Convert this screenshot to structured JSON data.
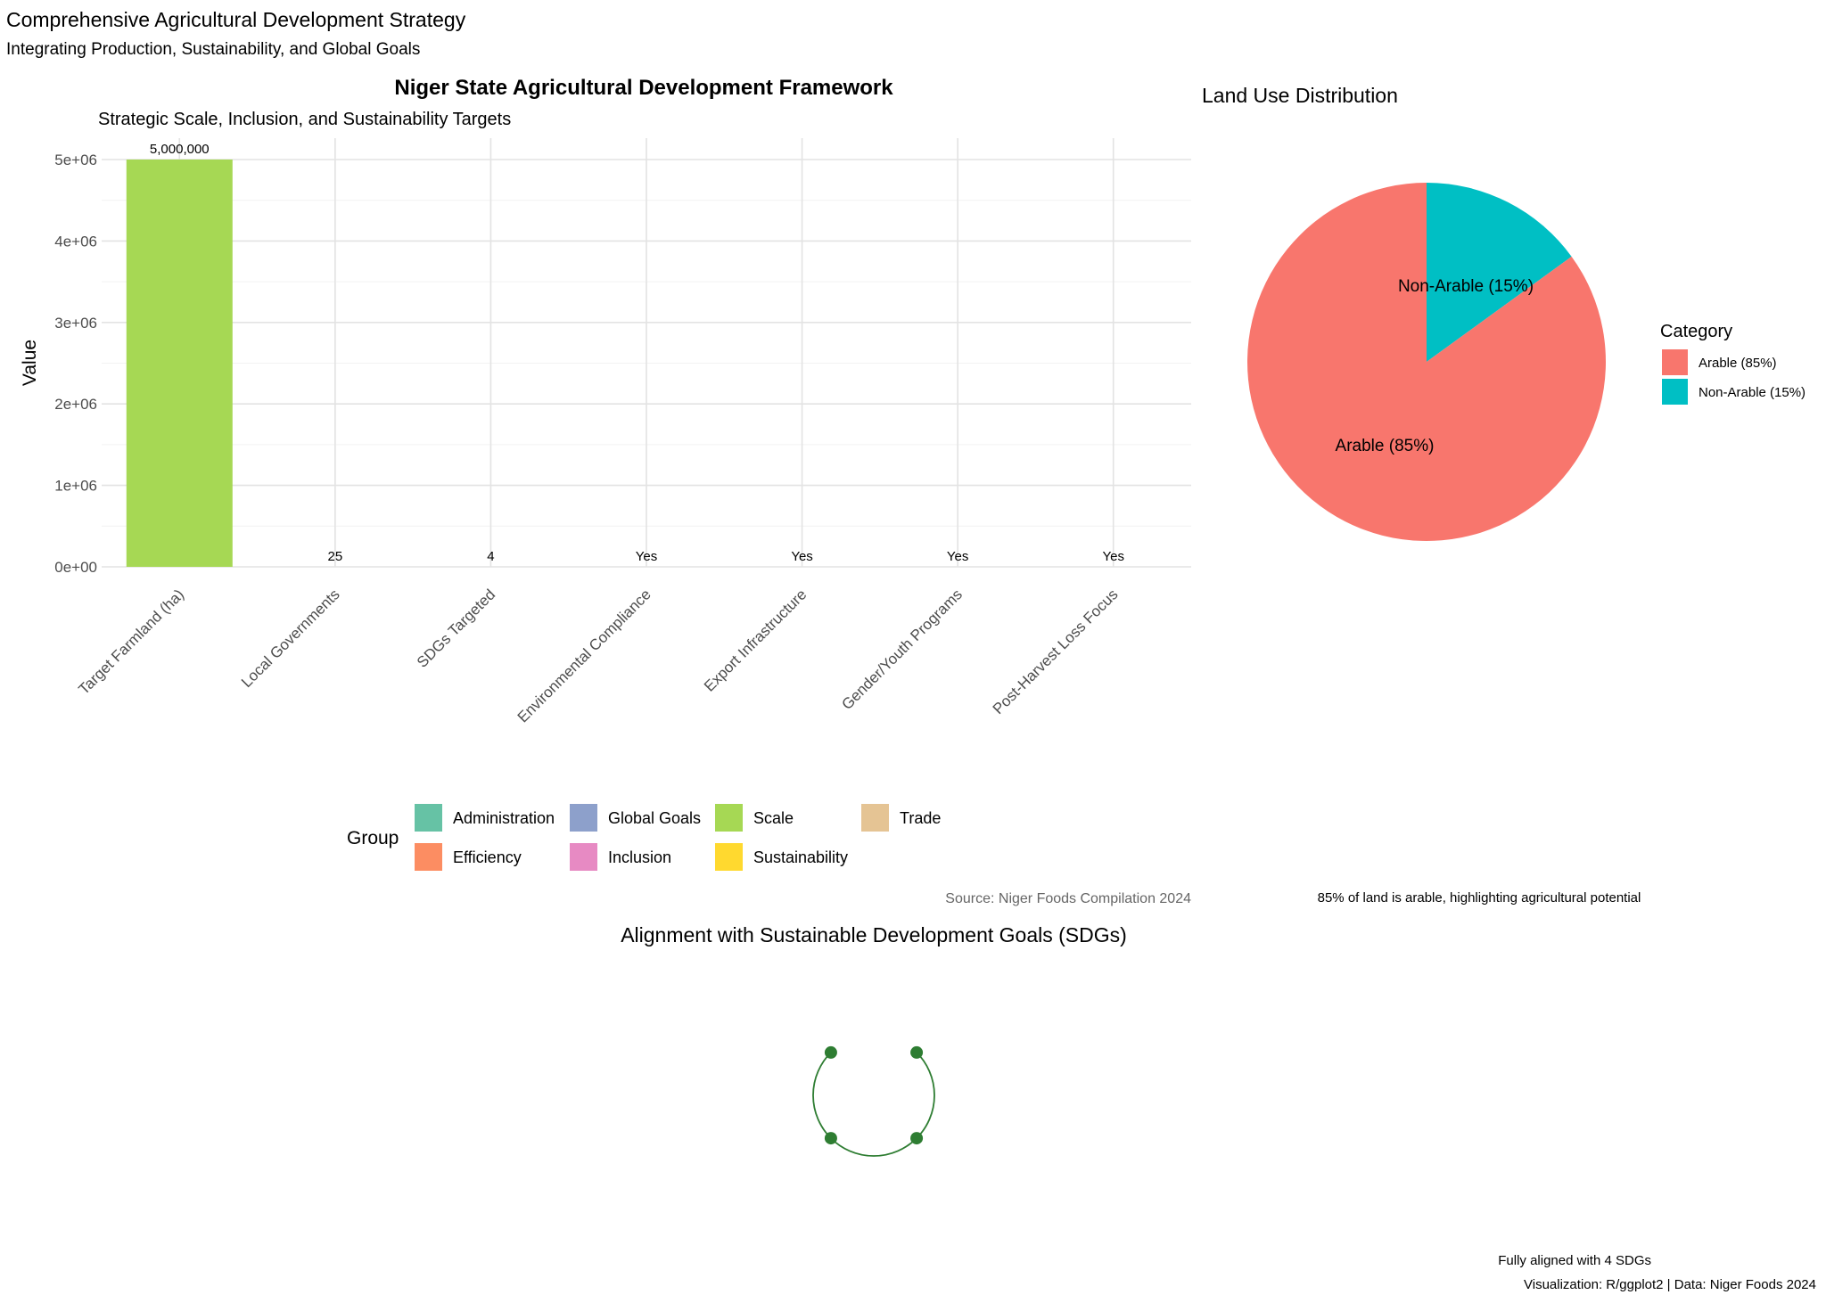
{
  "page": {
    "title": "Comprehensive Agricultural Development Strategy",
    "subtitle": "Integrating Production, Sustainability, and Global Goals",
    "caption_line1": "Fully aligned with 4 SDGs",
    "caption_line2": "Visualization: R/ggplot2 | Data: Niger Foods 2024"
  },
  "chart_data": [
    {
      "type": "bar",
      "title": "Niger State Agricultural Development Framework",
      "subtitle": "Strategic Scale, Inclusion, and Sustainability Targets",
      "xlabel": "",
      "ylabel": "Value",
      "caption": "Source: Niger Foods Compilation 2024",
      "ylim": [
        0,
        5000000
      ],
      "yticks": [
        "0e+00",
        "1e+06",
        "2e+06",
        "3e+06",
        "4e+06",
        "5e+06"
      ],
      "grid": true,
      "categories": [
        "Target Farmland (ha)",
        "Local Governments",
        "SDGs Targeted",
        "Environmental Compliance",
        "Export Infrastructure",
        "Gender/Youth Programs",
        "Post-Harvest Loss Focus"
      ],
      "values": [
        5000000,
        25,
        4,
        1,
        1,
        1,
        1
      ],
      "data_labels": [
        "5,000,000",
        "25",
        "4",
        "Yes",
        "Yes",
        "Yes",
        "Yes"
      ],
      "groups": [
        "Scale",
        "Administration",
        "Global Goals",
        "Sustainability",
        "Trade",
        "Inclusion",
        "Efficiency"
      ],
      "legend": {
        "title": "Group",
        "position": "bottom",
        "entries": [
          {
            "name": "Administration",
            "color": "#66C2A5"
          },
          {
            "name": "Efficiency",
            "color": "#FC8D62"
          },
          {
            "name": "Global Goals",
            "color": "#8DA0CB"
          },
          {
            "name": "Inclusion",
            "color": "#E78AC3"
          },
          {
            "name": "Scale",
            "color": "#A6D854"
          },
          {
            "name": "Sustainability",
            "color": "#FFD92F"
          },
          {
            "name": "Trade",
            "color": "#E5C494"
          }
        ]
      }
    },
    {
      "type": "pie",
      "title": "Land Use Distribution",
      "caption": "85% of land is arable, highlighting agricultural potential",
      "slices": [
        {
          "label": "Arable (85%)",
          "value": 85,
          "color": "#F8766D"
        },
        {
          "label": "Non-Arable (15%)",
          "value": 15,
          "color": "#00BFC4"
        }
      ],
      "legend": {
        "title": "Category",
        "position": "right"
      }
    },
    {
      "type": "scatter",
      "title": "Alignment with Sustainable Development Goals (SDGs)",
      "points": 4,
      "color": "#2E7D32"
    }
  ]
}
